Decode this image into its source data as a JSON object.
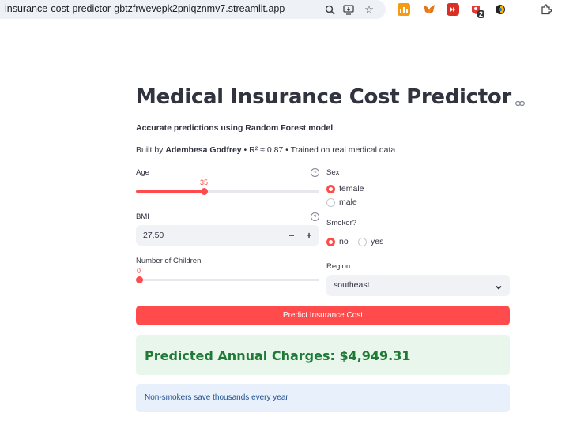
{
  "browser": {
    "url": "insurance-cost-predictor-gbtzfrwevepk2pniqznmv7.streamlit.app",
    "extension_badge": "2"
  },
  "app": {
    "title": "Medical Insurance Cost Predictor",
    "subtitle": "Accurate predictions using Random Forest model",
    "credits_prefix": "Built by ",
    "credits_author": "Adembesa Godfrey",
    "credits_suffix": " • R² ≈ 0.87 • Trained on real medical data"
  },
  "form": {
    "age": {
      "label": "Age",
      "value": "35",
      "min": 18,
      "max": 64,
      "fraction": 0.19
    },
    "bmi": {
      "label": "BMI",
      "value": "27.50",
      "minus": "−",
      "plus": "+"
    },
    "children": {
      "label": "Number of Children",
      "value": "0",
      "fraction": 0
    },
    "sex": {
      "label": "Sex",
      "options": [
        "female",
        "male"
      ],
      "selected": "female"
    },
    "smoker": {
      "label": "Smoker?",
      "options": [
        "no",
        "yes"
      ],
      "selected": "no"
    },
    "region": {
      "label": "Region",
      "value": "southeast"
    }
  },
  "actions": {
    "predict_label": "Predict Insurance Cost"
  },
  "result": {
    "text": "Predicted Annual Charges: $4,949.31"
  },
  "info": {
    "text": "Non-smokers save thousands every year"
  },
  "colors": {
    "accent": "#ff4b4b",
    "success_bg": "#e8f6ec",
    "success_text": "#1f7a35",
    "info_bg": "#e8f0fb",
    "info_text": "#1e4f91"
  },
  "icons": {
    "zoom": "zoom-icon",
    "install": "install-app-icon",
    "bookmark": "star-icon",
    "extensions": "puzzle-icon",
    "title_anchor": "link-icon",
    "help": "help-circle-icon",
    "select": "chevron-down-icon"
  }
}
